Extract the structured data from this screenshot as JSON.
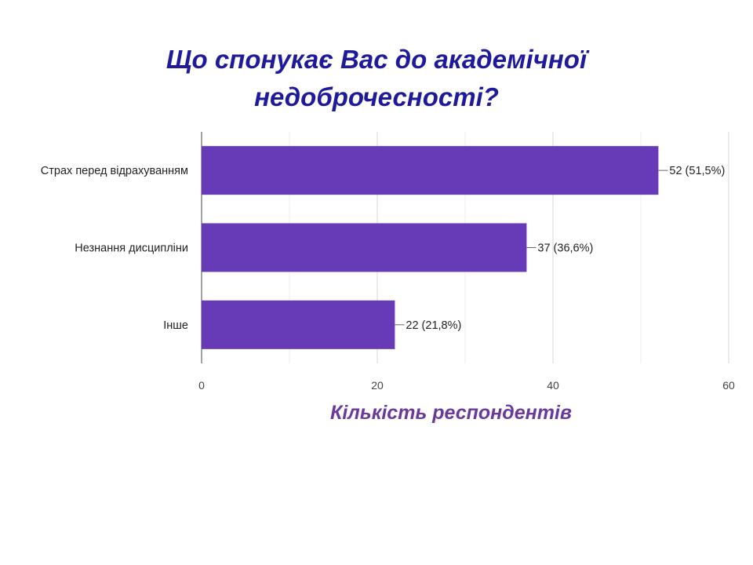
{
  "chart_data": {
    "type": "bar",
    "orientation": "horizontal",
    "title_lines": [
      "Що спонукає Вас до академічної",
      "недоброчесності?"
    ],
    "xlabel": "Кількість респондентів",
    "ylabel": "",
    "categories": [
      "Страх перед відрахуванням",
      "Незнання дисципліни",
      "Інше"
    ],
    "values": [
      52,
      37,
      22
    ],
    "data_labels": [
      "52 (51,5%)",
      "37 (36,6%)",
      "22 (21,8%)"
    ],
    "xlim": [
      0,
      60
    ],
    "xticks": [
      0,
      20,
      40,
      60
    ],
    "grid": true,
    "bar_color": "#673ab7"
  }
}
